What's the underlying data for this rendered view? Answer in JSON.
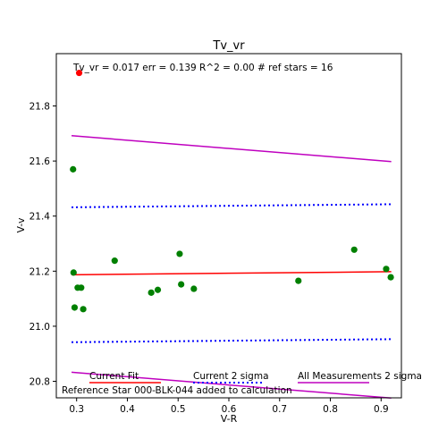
{
  "chart_data": {
    "type": "scatter",
    "title": "Tv_vr",
    "annotation": "Tv_vr =  0.017 err = 0.139  R^2 = 0.00  # ref stars =  16",
    "xlabel": "V-R",
    "ylabel": "V-v",
    "xlim": [
      0.26,
      0.94
    ],
    "ylim": [
      20.74,
      21.99
    ],
    "xticks": [
      0.3,
      0.4,
      0.5,
      0.6,
      0.7,
      0.8,
      0.9
    ],
    "xtick_labels": [
      "0.3",
      "0.4",
      "0.5",
      "0.6",
      "0.7",
      "0.8",
      "0.9"
    ],
    "yticks": [
      20.8,
      21.0,
      21.2,
      21.4,
      21.6,
      21.8
    ],
    "ytick_labels": [
      "20.8",
      "21.0",
      "21.2",
      "21.4",
      "21.6",
      "21.8"
    ],
    "grid": false,
    "points": [
      {
        "x": 0.293,
        "y": 21.57
      },
      {
        "x": 0.294,
        "y": 21.195
      },
      {
        "x": 0.296,
        "y": 21.068
      },
      {
        "x": 0.302,
        "y": 21.14
      },
      {
        "x": 0.309,
        "y": 21.14
      },
      {
        "x": 0.313,
        "y": 21.062
      },
      {
        "x": 0.375,
        "y": 21.238
      },
      {
        "x": 0.447,
        "y": 21.122
      },
      {
        "x": 0.46,
        "y": 21.132
      },
      {
        "x": 0.503,
        "y": 21.263
      },
      {
        "x": 0.506,
        "y": 21.152
      },
      {
        "x": 0.531,
        "y": 21.136
      },
      {
        "x": 0.737,
        "y": 21.165
      },
      {
        "x": 0.847,
        "y": 21.278
      },
      {
        "x": 0.91,
        "y": 21.208
      },
      {
        "x": 0.919,
        "y": 21.178
      }
    ],
    "highlight_point": {
      "x": 0.305,
      "y": 21.92,
      "color": "#ff0000"
    },
    "series": [
      {
        "name": "Current Fit",
        "color": "#ff0000",
        "style": "solid",
        "x": [
          0.29,
          0.92
        ],
        "y": [
          21.187,
          21.198
        ]
      },
      {
        "name": "Current 2 sigma",
        "color": "#0000ff",
        "style": "dotted",
        "x": [
          0.29,
          0.92
        ],
        "y": [
          21.432,
          21.443
        ]
      },
      {
        "name": "Current 2 sigma",
        "color": "#0000ff",
        "style": "dotted",
        "x": [
          0.29,
          0.92
        ],
        "y": [
          20.942,
          20.953
        ]
      },
      {
        "name": "All Measurements 2 sigma",
        "color": "#bf00bf",
        "style": "solid",
        "x": [
          0.29,
          0.92
        ],
        "y": [
          21.692,
          21.598
        ]
      },
      {
        "name": "All Measurements 2 sigma",
        "color": "#bf00bf",
        "style": "solid",
        "x": [
          0.29,
          0.92
        ],
        "y": [
          20.833,
          20.739
        ]
      }
    ],
    "legend": [
      {
        "label": "Current Fit",
        "color": "#ff0000",
        "style": "solid"
      },
      {
        "label": "Current 2 sigma",
        "color": "#0000ff",
        "style": "dotted"
      },
      {
        "label": "All Measurements 2 sigma",
        "color": "#bf00bf",
        "style": "solid"
      }
    ],
    "footnote": "Reference Star 000-BLK-044 added to calculation",
    "point_color": "#008000"
  }
}
